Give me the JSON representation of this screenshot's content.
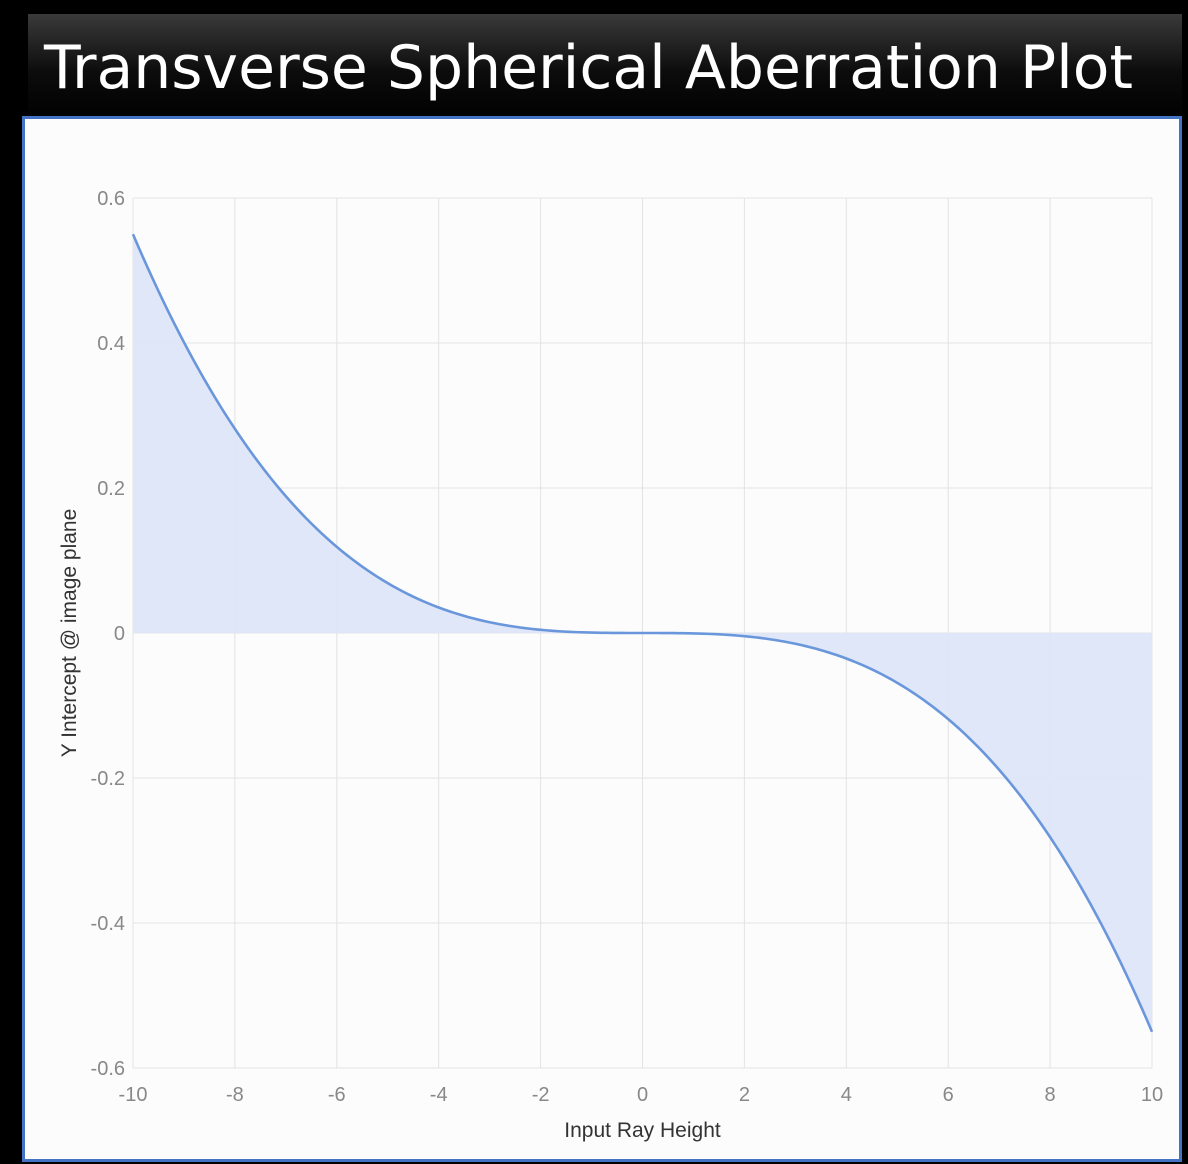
{
  "header": {
    "title": "Transverse Spherical Aberration Plot"
  },
  "colors": {
    "line": "#6a96dc",
    "fill": "#dde6f8",
    "grid": "#e3e3e3",
    "panel_border": "#4472c4"
  },
  "chart_data": {
    "type": "area",
    "title": "",
    "xlabel": "Input Ray Height",
    "ylabel": "Y Intercept @ image plane",
    "xlim": [
      -10,
      10
    ],
    "ylim": [
      -0.6,
      0.6
    ],
    "grid": true,
    "x_ticks": [
      -10,
      -8,
      -6,
      -4,
      -2,
      0,
      2,
      4,
      6,
      8,
      10
    ],
    "y_ticks": [
      0.6,
      0.4,
      0.2,
      0,
      -0.2,
      -0.4,
      -0.6
    ],
    "series": [
      {
        "x": [
          -10,
          -9,
          -8,
          -7,
          -6,
          -5,
          -4,
          -3,
          -2,
          -1,
          0,
          1,
          2,
          3,
          4,
          5,
          6,
          7,
          8,
          9,
          10
        ],
        "values": [
          0.55,
          0.401,
          0.282,
          0.189,
          0.119,
          0.069,
          0.035,
          0.015,
          0.004,
          0.001,
          0,
          -0.001,
          -0.004,
          -0.015,
          -0.035,
          -0.069,
          -0.119,
          -0.189,
          -0.282,
          -0.401,
          -0.55
        ]
      }
    ]
  }
}
